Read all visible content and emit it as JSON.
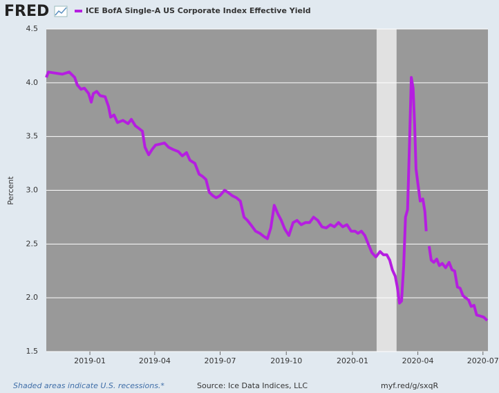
{
  "chart_data": {
    "type": "line",
    "logo": "FRED",
    "ylabel": "Percent",
    "footnote": "Shaded areas indicate U.S. recessions.*",
    "source": "Source: Ice Data Indices, LLC",
    "link": "myf.red/g/sxqR",
    "xlim": [
      2018.834,
      2020.516
    ],
    "xticks": [
      {
        "value": 2019.0,
        "label": "2019-01"
      },
      {
        "value": 2019.247,
        "label": "2019-04"
      },
      {
        "value": 2019.496,
        "label": "2019-07"
      },
      {
        "value": 2019.748,
        "label": "2019-10"
      },
      {
        "value": 2020.0,
        "label": "2020-01"
      },
      {
        "value": 2020.249,
        "label": "2020-04"
      },
      {
        "value": 2020.497,
        "label": "2020-07"
      }
    ],
    "ylim": [
      1.5,
      4.5
    ],
    "yticks": [
      1.5,
      {
        "value": 2,
        "label": "2.0"
      },
      2.5,
      {
        "value": 3,
        "label": "3.0"
      },
      3.5,
      {
        "value": 4,
        "label": "4.0"
      },
      4.5
    ],
    "grid": true,
    "recessions": [
      [
        2020.092,
        2020.168
      ]
    ],
    "x": [
      2018.834,
      2018.842,
      2018.868,
      2018.895,
      2018.921,
      2018.942,
      2018.952,
      2018.966,
      2018.979,
      2018.995,
      2019.005,
      2019.013,
      2019.026,
      2019.039,
      2019.058,
      2019.071,
      2019.079,
      2019.092,
      2019.105,
      2019.126,
      2019.145,
      2019.158,
      2019.173,
      2019.184,
      2019.2,
      2019.21,
      2019.224,
      2019.237,
      2019.25,
      2019.268,
      2019.284,
      2019.3,
      2019.316,
      2019.337,
      2019.352,
      2019.368,
      2019.381,
      2019.4,
      2019.416,
      2019.429,
      2019.442,
      2019.455,
      2019.468,
      2019.481,
      2019.495,
      2019.513,
      2019.526,
      2019.542,
      2019.558,
      2019.573,
      2019.587,
      2019.6,
      2019.616,
      2019.631,
      2019.647,
      2019.663,
      2019.676,
      2019.689,
      2019.702,
      2019.716,
      2019.729,
      2019.742,
      2019.758,
      2019.774,
      2019.789,
      2019.805,
      2019.821,
      2019.837,
      2019.852,
      2019.868,
      2019.884,
      2019.9,
      2019.916,
      2019.931,
      2019.947,
      2019.963,
      2019.979,
      2019.995,
      2020.01,
      2020.021,
      2020.034,
      2020.047,
      2020.06,
      2020.074,
      2020.089,
      2020.105,
      2020.118,
      2020.131,
      2020.142,
      2020.152,
      2020.163,
      2020.171,
      2020.179,
      2020.187,
      2020.195,
      2020.202,
      2020.21,
      2020.218,
      2020.224,
      2020.231,
      2020.237,
      2020.242,
      2020.25,
      2020.258,
      2020.268,
      2020.276,
      2020.281,
      2020.287,
      2020.292,
      2020.3,
      2020.31,
      2020.321,
      2020.331,
      2020.342,
      2020.355,
      2020.368,
      2020.379,
      2020.389,
      2020.4,
      2020.41,
      2020.421,
      2020.431,
      2020.442,
      2020.452,
      2020.463,
      2020.473,
      2020.487,
      2020.5,
      2020.513
    ],
    "series": [
      {
        "name": "ICE BofA Single-A US Corporate Index Effective Yield",
        "color": "#b51ee0",
        "values": [
          4.05,
          4.1,
          4.09,
          4.08,
          4.1,
          4.05,
          3.98,
          3.94,
          3.95,
          3.9,
          3.82,
          3.9,
          3.92,
          3.88,
          3.87,
          3.78,
          3.68,
          3.7,
          3.63,
          3.65,
          3.62,
          3.66,
          3.6,
          3.58,
          3.55,
          3.4,
          3.33,
          3.38,
          3.42,
          3.43,
          3.44,
          3.4,
          3.38,
          3.36,
          3.32,
          3.35,
          3.28,
          3.25,
          3.15,
          3.13,
          3.1,
          2.98,
          2.95,
          2.93,
          2.95,
          3.0,
          2.98,
          2.95,
          2.93,
          2.9,
          2.75,
          2.72,
          2.67,
          2.62,
          2.6,
          2.57,
          2.55,
          2.65,
          2.86,
          2.78,
          2.72,
          2.64,
          2.58,
          2.7,
          2.72,
          2.68,
          2.7,
          2.7,
          2.75,
          2.72,
          2.66,
          2.65,
          2.68,
          2.66,
          2.7,
          2.66,
          2.68,
          2.62,
          2.62,
          2.6,
          2.62,
          2.58,
          2.5,
          2.42,
          2.38,
          2.43,
          2.4,
          2.4,
          2.35,
          2.26,
          2.2,
          2.1,
          1.95,
          1.97,
          2.3,
          2.75,
          2.82,
          3.5,
          4.05,
          3.95,
          3.6,
          3.2,
          3.05,
          2.9,
          2.92,
          2.8,
          2.62,
          null,
          2.48,
          2.35,
          2.33,
          2.36,
          2.3,
          2.32,
          2.28,
          2.33,
          2.26,
          2.25,
          2.1,
          2.09,
          2.02,
          2.0,
          1.98,
          1.92,
          1.93,
          1.84,
          1.83,
          1.82,
          1.79
        ]
      }
    ]
  }
}
